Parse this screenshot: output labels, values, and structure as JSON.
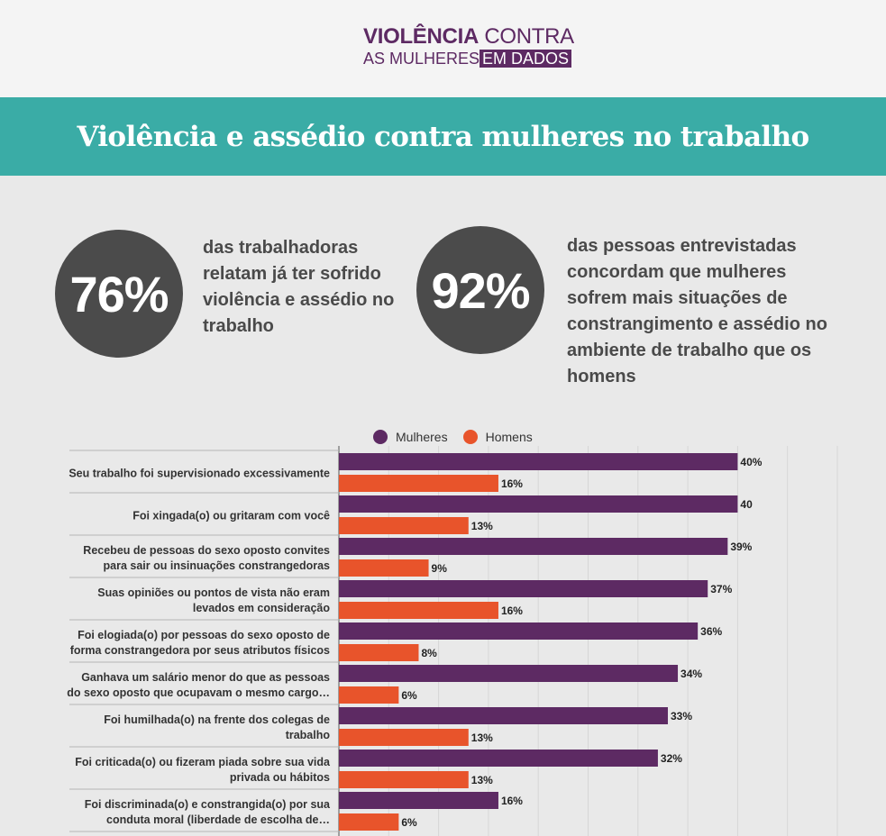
{
  "header": {
    "logo_word1": "VIOLÊNCIA",
    "logo_word2": "CONTRA",
    "logo_line2a": "AS MULHERES",
    "logo_line2b": "EM DADOS"
  },
  "banner": {
    "title": "Violência e assédio contra mulheres no trabalho"
  },
  "stats": [
    {
      "value": "76%",
      "text": "das trabalhadoras relatam já ter sofrido violência e assédio no trabalho"
    },
    {
      "value": "92%",
      "text": "das pessoas entrevistadas concordam que mulheres sofrem mais situações de constrangimento e assédio no ambiente de trabalho que os homens"
    }
  ],
  "colors": {
    "mulheres": "#5d2a63",
    "homens": "#e8542b",
    "teal": "#3aaca6",
    "circle": "#4b4b4b"
  },
  "chart_data": {
    "type": "bar",
    "orientation": "horizontal",
    "categories": [
      "Seu trabalho foi supervisionado excessivamente",
      "Foi xingada(o) ou gritaram com você",
      "Recebeu de pessoas do sexo oposto convites para sair ou insinuações constrangedoras",
      "Suas opiniões ou pontos de vista não eram levados em consideração",
      "Foi elogiada(o) por pessoas do sexo oposto de forma constrangedora por seus atributos físicos",
      "Ganhava um salário menor do que as pessoas do sexo oposto que ocupavam o mesmo cargo…",
      "Foi humilhada(o) na frente dos colegas de trabalho",
      "Foi criticada(o) ou fizeram piada sobre sua vida privada ou hábitos",
      "Foi discriminada(o) e constrangida(o) por sua conduta moral (liberdade de escolha de…"
    ],
    "category_lines": [
      [
        "Seu trabalho foi supervisionado excessivamente"
      ],
      [
        "Foi xingada(o) ou gritaram com você"
      ],
      [
        "Recebeu de pessoas do sexo oposto convites",
        "para sair ou insinuações constrangedoras"
      ],
      [
        "Suas opiniões ou pontos de vista não eram",
        "levados em consideração"
      ],
      [
        "Foi elogiada(o) por pessoas do sexo oposto de",
        "forma constrangedora por seus atributos físicos"
      ],
      [
        "Ganhava um salário menor do que as pessoas",
        "do sexo oposto que ocupavam o mesmo cargo…"
      ],
      [
        "Foi humilhada(o) na frente dos colegas de",
        "trabalho"
      ],
      [
        "Foi criticada(o) ou fizeram piada sobre sua vida",
        "privada ou hábitos"
      ],
      [
        "Foi discriminada(o) e constrangida(o) por sua",
        "conduta moral (liberdade de escolha de…"
      ]
    ],
    "series": [
      {
        "name": "Mulheres",
        "values": [
          40,
          40,
          39,
          37,
          36,
          34,
          33,
          32,
          16
        ],
        "labels": [
          "40%",
          "40",
          "39%",
          "37%",
          "36%",
          "34%",
          "33%",
          "32%",
          "16%"
        ]
      },
      {
        "name": "Homens",
        "values": [
          16,
          13,
          9,
          16,
          8,
          6,
          13,
          13,
          6
        ],
        "labels": [
          "16%",
          "13%",
          "9%",
          "16%",
          "8%",
          "6%",
          "13%",
          "13%",
          "6%"
        ]
      }
    ],
    "xlim": [
      0,
      50
    ],
    "legend_position": "top-center",
    "grid": true
  }
}
